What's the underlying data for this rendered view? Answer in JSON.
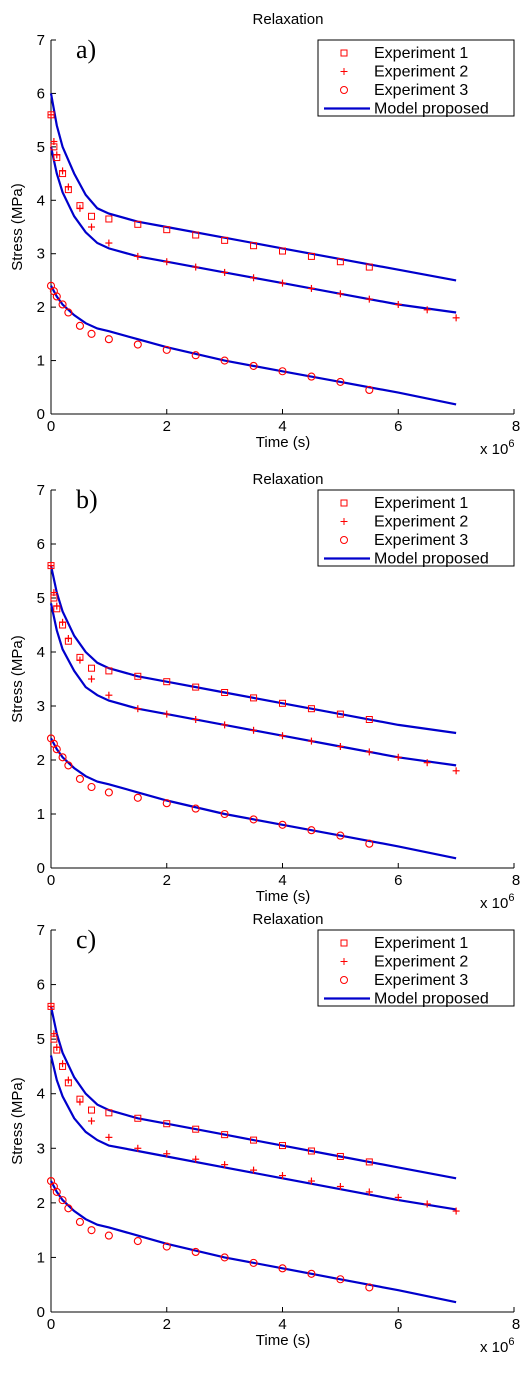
{
  "chart_data": [
    {
      "type": "line",
      "panel_label": "a)",
      "title": "Relaxation",
      "xlabel": "Time (s)",
      "ylabel": "Stress (MPa)",
      "x_multiplier": "x 10^6",
      "xlim": [
        0,
        8
      ],
      "ylim": [
        0,
        7
      ],
      "xticks": [
        "0",
        "2",
        "4",
        "6",
        "8"
      ],
      "yticks": [
        "0",
        "1",
        "2",
        "3",
        "4",
        "5",
        "6",
        "7"
      ],
      "legend_position": "top-right",
      "colors": {
        "experiment": "#ff0000",
        "model": "#0000cc"
      },
      "series": [
        {
          "name": "Experiment 1",
          "marker": "square",
          "x": [
            0,
            0.05,
            0.1,
            0.2,
            0.3,
            0.5,
            0.7,
            1.0,
            1.5,
            2.0,
            2.5,
            3.0,
            3.5,
            4.0,
            4.5,
            5.0,
            5.5
          ],
          "y": [
            5.6,
            5.0,
            4.8,
            4.5,
            4.2,
            3.9,
            3.7,
            3.65,
            3.55,
            3.45,
            3.35,
            3.25,
            3.15,
            3.05,
            2.95,
            2.85,
            2.75
          ]
        },
        {
          "name": "Experiment 2",
          "marker": "plus",
          "x": [
            0,
            0.05,
            0.1,
            0.2,
            0.3,
            0.5,
            0.7,
            1.0,
            1.5,
            2.0,
            2.5,
            3.0,
            3.5,
            4.0,
            4.5,
            5.0,
            5.5,
            6.0,
            6.5,
            7.0
          ],
          "y": [
            5.6,
            5.1,
            4.85,
            4.55,
            4.25,
            3.85,
            3.5,
            3.2,
            2.95,
            2.85,
            2.75,
            2.65,
            2.55,
            2.45,
            2.35,
            2.25,
            2.15,
            2.05,
            1.95,
            1.8
          ]
        },
        {
          "name": "Experiment 3",
          "marker": "circle",
          "x": [
            0,
            0.05,
            0.1,
            0.2,
            0.3,
            0.5,
            0.7,
            1.0,
            1.5,
            2.0,
            2.5,
            3.0,
            3.5,
            4.0,
            4.5,
            5.0,
            5.5
          ],
          "y": [
            2.4,
            2.3,
            2.2,
            2.05,
            1.9,
            1.65,
            1.5,
            1.4,
            1.3,
            1.2,
            1.1,
            1.0,
            0.9,
            0.8,
            0.7,
            0.6,
            0.45
          ]
        },
        {
          "name": "Model proposed",
          "style": "line",
          "x": [
            0,
            0.1,
            0.2,
            0.4,
            0.6,
            0.8,
            1.0,
            1.5,
            2,
            3,
            4,
            5,
            6,
            7
          ],
          "y": [
            6.0,
            5.4,
            5.0,
            4.5,
            4.1,
            3.85,
            3.75,
            3.6,
            3.5,
            3.3,
            3.1,
            2.9,
            2.7,
            2.5
          ]
        },
        {
          "name": "",
          "style": "line",
          "x": [
            0,
            0.1,
            0.2,
            0.4,
            0.6,
            0.8,
            1.0,
            1.5,
            2,
            3,
            4,
            5,
            6,
            7
          ],
          "y": [
            5.0,
            4.5,
            4.15,
            3.7,
            3.4,
            3.2,
            3.1,
            2.95,
            2.85,
            2.65,
            2.45,
            2.25,
            2.05,
            1.9
          ]
        },
        {
          "name": "",
          "style": "line",
          "x": [
            0,
            0.1,
            0.2,
            0.4,
            0.6,
            0.8,
            1.0,
            1.5,
            2,
            3,
            4,
            5,
            6,
            7
          ],
          "y": [
            2.4,
            2.2,
            2.05,
            1.85,
            1.7,
            1.6,
            1.55,
            1.4,
            1.25,
            1.0,
            0.8,
            0.6,
            0.4,
            0.18
          ]
        }
      ]
    },
    {
      "type": "line",
      "panel_label": "b)",
      "title": "Relaxation",
      "xlabel": "Time (s)",
      "ylabel": "Stress (MPa)",
      "x_multiplier": "x 10^6",
      "xlim": [
        0,
        8
      ],
      "ylim": [
        0,
        7
      ],
      "xticks": [
        "0",
        "2",
        "4",
        "6",
        "8"
      ],
      "yticks": [
        "0",
        "1",
        "2",
        "3",
        "4",
        "5",
        "6",
        "7"
      ],
      "legend_position": "top-right",
      "colors": {
        "experiment": "#ff0000",
        "model": "#0000cc"
      },
      "series": [
        {
          "name": "Experiment 1",
          "marker": "square",
          "x": [
            0,
            0.05,
            0.1,
            0.2,
            0.3,
            0.5,
            0.7,
            1.0,
            1.5,
            2.0,
            2.5,
            3.0,
            3.5,
            4.0,
            4.5,
            5.0,
            5.5
          ],
          "y": [
            5.6,
            5.0,
            4.8,
            4.5,
            4.2,
            3.9,
            3.7,
            3.65,
            3.55,
            3.45,
            3.35,
            3.25,
            3.15,
            3.05,
            2.95,
            2.85,
            2.75
          ]
        },
        {
          "name": "Experiment 2",
          "marker": "plus",
          "x": [
            0,
            0.05,
            0.1,
            0.2,
            0.3,
            0.5,
            0.7,
            1.0,
            1.5,
            2.0,
            2.5,
            3.0,
            3.5,
            4.0,
            4.5,
            5.0,
            5.5,
            6.0,
            6.5,
            7.0
          ],
          "y": [
            5.6,
            5.1,
            4.85,
            4.55,
            4.25,
            3.85,
            3.5,
            3.2,
            2.95,
            2.85,
            2.75,
            2.65,
            2.55,
            2.45,
            2.35,
            2.25,
            2.15,
            2.05,
            1.95,
            1.8
          ]
        },
        {
          "name": "Experiment 3",
          "marker": "circle",
          "x": [
            0,
            0.05,
            0.1,
            0.2,
            0.3,
            0.5,
            0.7,
            1.0,
            1.5,
            2.0,
            2.5,
            3.0,
            3.5,
            4.0,
            4.5,
            5.0,
            5.5
          ],
          "y": [
            2.4,
            2.3,
            2.2,
            2.05,
            1.9,
            1.65,
            1.5,
            1.4,
            1.3,
            1.2,
            1.1,
            1.0,
            0.9,
            0.8,
            0.7,
            0.6,
            0.45
          ]
        },
        {
          "name": "Model proposed",
          "style": "line",
          "x": [
            0,
            0.1,
            0.2,
            0.4,
            0.6,
            0.8,
            1.0,
            1.5,
            2,
            3,
            4,
            5,
            6,
            7
          ],
          "y": [
            5.6,
            5.1,
            4.75,
            4.3,
            4.0,
            3.8,
            3.7,
            3.55,
            3.45,
            3.25,
            3.05,
            2.85,
            2.65,
            2.5
          ]
        },
        {
          "name": "",
          "style": "line",
          "x": [
            0,
            0.1,
            0.2,
            0.4,
            0.6,
            0.8,
            1.0,
            1.5,
            2,
            3,
            4,
            5,
            6,
            7
          ],
          "y": [
            4.9,
            4.4,
            4.05,
            3.65,
            3.35,
            3.2,
            3.1,
            2.95,
            2.85,
            2.65,
            2.45,
            2.25,
            2.05,
            1.9
          ]
        },
        {
          "name": "",
          "style": "line",
          "x": [
            0,
            0.1,
            0.2,
            0.4,
            0.6,
            0.8,
            1.0,
            1.5,
            2,
            3,
            4,
            5,
            6,
            7
          ],
          "y": [
            2.4,
            2.2,
            2.05,
            1.85,
            1.7,
            1.6,
            1.55,
            1.4,
            1.25,
            1.0,
            0.8,
            0.6,
            0.4,
            0.18
          ]
        }
      ]
    },
    {
      "type": "line",
      "panel_label": "c)",
      "title": "Relaxation",
      "xlabel": "Time (s)",
      "ylabel": "Stress (MPa)",
      "x_multiplier": "x 10^6",
      "xlim": [
        0,
        8
      ],
      "ylim": [
        0,
        7
      ],
      "xticks": [
        "0",
        "2",
        "4",
        "6",
        "8"
      ],
      "yticks": [
        "0",
        "1",
        "2",
        "3",
        "4",
        "5",
        "6",
        "7"
      ],
      "legend_position": "top-right",
      "colors": {
        "experiment": "#ff0000",
        "model": "#0000cc"
      },
      "series": [
        {
          "name": "Experiment 1",
          "marker": "square",
          "x": [
            0,
            0.05,
            0.1,
            0.2,
            0.3,
            0.5,
            0.7,
            1.0,
            1.5,
            2.0,
            2.5,
            3.0,
            3.5,
            4.0,
            4.5,
            5.0,
            5.5
          ],
          "y": [
            5.6,
            5.0,
            4.8,
            4.5,
            4.2,
            3.9,
            3.7,
            3.65,
            3.55,
            3.45,
            3.35,
            3.25,
            3.15,
            3.05,
            2.95,
            2.85,
            2.75
          ]
        },
        {
          "name": "Experiment 2",
          "marker": "plus",
          "x": [
            0,
            0.05,
            0.1,
            0.2,
            0.3,
            0.5,
            0.7,
            1.0,
            1.5,
            2.0,
            2.5,
            3.0,
            3.5,
            4.0,
            4.5,
            5.0,
            5.5,
            6.0,
            6.5,
            7.0
          ],
          "y": [
            5.6,
            5.1,
            4.85,
            4.55,
            4.25,
            3.85,
            3.5,
            3.2,
            3.0,
            2.9,
            2.8,
            2.7,
            2.6,
            2.5,
            2.4,
            2.3,
            2.2,
            2.1,
            1.98,
            1.85
          ]
        },
        {
          "name": "Experiment 3",
          "marker": "circle",
          "x": [
            0,
            0.05,
            0.1,
            0.2,
            0.3,
            0.5,
            0.7,
            1.0,
            1.5,
            2.0,
            2.5,
            3.0,
            3.5,
            4.0,
            4.5,
            5.0,
            5.5
          ],
          "y": [
            2.4,
            2.3,
            2.2,
            2.05,
            1.9,
            1.65,
            1.5,
            1.4,
            1.3,
            1.2,
            1.1,
            1.0,
            0.9,
            0.8,
            0.7,
            0.6,
            0.45
          ]
        },
        {
          "name": "Model proposed",
          "style": "line",
          "x": [
            0,
            0.1,
            0.2,
            0.4,
            0.6,
            0.8,
            1.0,
            1.5,
            2,
            3,
            4,
            5,
            6,
            7
          ],
          "y": [
            5.6,
            5.1,
            4.75,
            4.3,
            4.0,
            3.8,
            3.7,
            3.55,
            3.45,
            3.25,
            3.05,
            2.85,
            2.65,
            2.45
          ]
        },
        {
          "name": "",
          "style": "line",
          "x": [
            0,
            0.1,
            0.2,
            0.4,
            0.6,
            0.8,
            1.0,
            1.5,
            2,
            3,
            4,
            5,
            6,
            7
          ],
          "y": [
            4.7,
            4.25,
            3.95,
            3.55,
            3.3,
            3.15,
            3.05,
            2.95,
            2.85,
            2.65,
            2.45,
            2.25,
            2.05,
            1.88
          ]
        },
        {
          "name": "",
          "style": "line",
          "x": [
            0,
            0.1,
            0.2,
            0.4,
            0.6,
            0.8,
            1.0,
            1.5,
            2,
            3,
            4,
            5,
            6,
            7
          ],
          "y": [
            2.4,
            2.2,
            2.05,
            1.85,
            1.7,
            1.6,
            1.55,
            1.4,
            1.25,
            1.0,
            0.8,
            0.6,
            0.4,
            0.18
          ]
        }
      ]
    }
  ]
}
